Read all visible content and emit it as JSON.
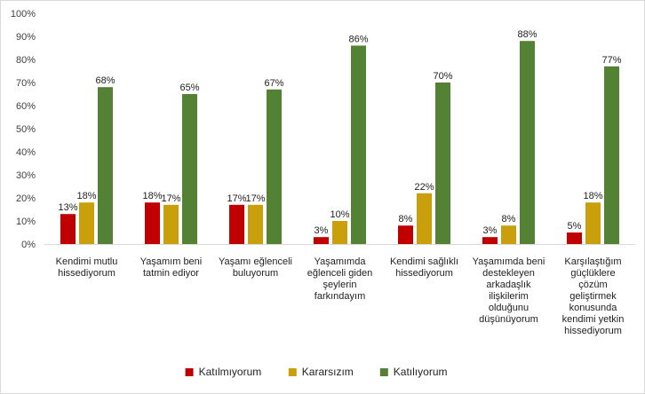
{
  "chart_data": {
    "type": "bar",
    "categories": [
      [
        "Kendimi mutlu",
        "hissediyorum"
      ],
      [
        "Yaşamım beni",
        "tatmin ediyor"
      ],
      [
        "Yaşamı eğlenceli",
        "buluyorum"
      ],
      [
        "Yaşamımda",
        "eğlenceli giden",
        "şeylerin",
        "farkındayım"
      ],
      [
        "Kendimi sağlıklı",
        "hissediyorum"
      ],
      [
        "Yaşamımda beni",
        "destekleyen",
        "arkadaşlık",
        "ilişkilerim",
        "olduğunu",
        "düşünüyorum"
      ],
      [
        "Karşılaştığım",
        "güçlüklere",
        "çözüm",
        "geliştirmek",
        "konusunda",
        "kendimi yetkin",
        "hissediyorum"
      ]
    ],
    "series": [
      {
        "name": "Katılmıyorum",
        "color": "#c00000",
        "values": [
          13,
          18,
          17,
          3,
          8,
          3,
          5
        ]
      },
      {
        "name": "Kararsızım",
        "color": "#c9a00c",
        "values": [
          18,
          17,
          17,
          10,
          22,
          8,
          18
        ]
      },
      {
        "name": "Katılıyorum",
        "color": "#548235",
        "values": [
          68,
          65,
          67,
          86,
          70,
          88,
          77
        ]
      }
    ],
    "yticks": [
      "0%",
      "10%",
      "20%",
      "30%",
      "40%",
      "50%",
      "60%",
      "70%",
      "80%",
      "90%",
      "100%"
    ],
    "ylim": [
      0,
      100
    ],
    "value_suffix": "%",
    "legend_position": "bottom",
    "grid": false
  }
}
